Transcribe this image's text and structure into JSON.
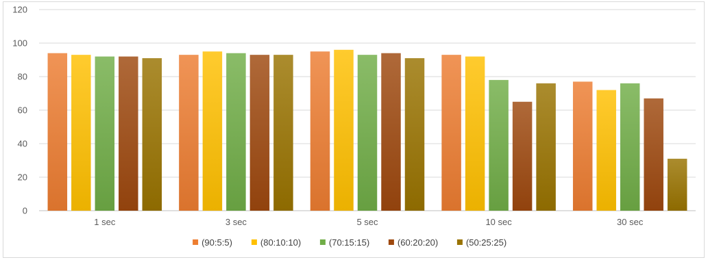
{
  "chart_data": {
    "type": "bar",
    "title": "",
    "xlabel": "",
    "ylabel": "",
    "ylim": [
      0,
      120
    ],
    "yticks": [
      "0",
      "20",
      "40",
      "60",
      "80",
      "100",
      "120"
    ],
    "grid": true,
    "legend_position": "bottom",
    "categories": [
      "1 sec",
      "3 sec",
      "5 sec",
      "10 sec",
      "30 sec"
    ],
    "series": [
      {
        "name": "(90:5:5)",
        "color": "#ED7D31",
        "values": [
          94,
          93,
          95,
          93,
          77
        ]
      },
      {
        "name": "(80:10:10)",
        "color": "#FFC000",
        "values": [
          93,
          95,
          96,
          92,
          72
        ]
      },
      {
        "name": "(70:15:15)",
        "color": "#70AD47",
        "values": [
          92,
          94,
          93,
          78,
          76
        ]
      },
      {
        "name": "(60:20:20)",
        "color": "#9E480E",
        "values": [
          92,
          93,
          94,
          65,
          67
        ]
      },
      {
        "name": "(50:25:25)",
        "color": "#997300",
        "values": [
          91,
          93,
          91,
          76,
          31
        ]
      }
    ]
  }
}
